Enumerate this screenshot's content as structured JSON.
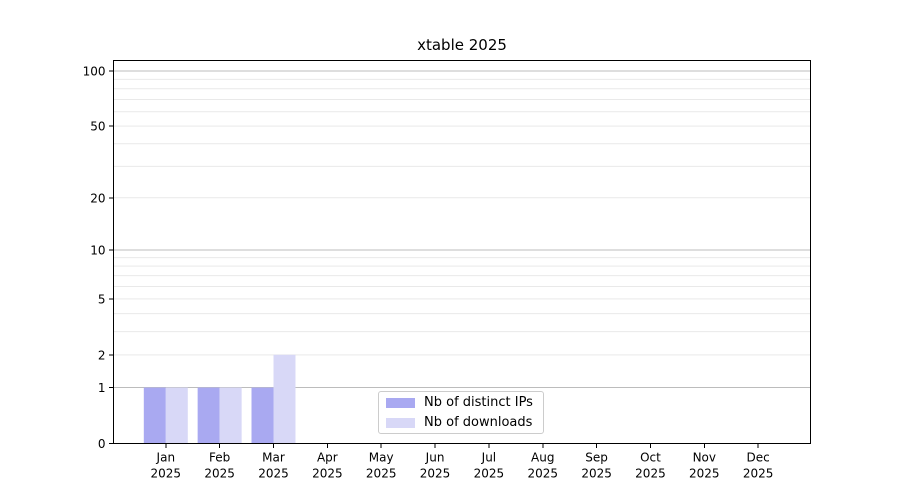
{
  "figure": {
    "title": "xtable 2025",
    "background": "#ffffff"
  },
  "chart_data": {
    "type": "bar",
    "title": "xtable 2025",
    "categories": [
      "Jan",
      "Feb",
      "Mar",
      "Apr",
      "May",
      "Jun",
      "Jul",
      "Aug",
      "Sep",
      "Oct",
      "Nov",
      "Dec"
    ],
    "category_year": "2025",
    "series": [
      {
        "name": "Nb of distinct IPs",
        "color": "#a9a9f1",
        "values": [
          1,
          1,
          1,
          0,
          0,
          0,
          0,
          0,
          0,
          0,
          0,
          0
        ]
      },
      {
        "name": "Nb of downloads",
        "color": "#d8d8f7",
        "values": [
          1,
          1,
          2,
          0,
          0,
          0,
          0,
          0,
          0,
          0,
          0,
          0
        ]
      }
    ],
    "yscale": "log10(1+y)",
    "yticks": [
      0,
      1,
      2,
      5,
      10,
      20,
      50,
      100
    ],
    "ylim": [
      0,
      115
    ],
    "grid": "on",
    "grid_major_values": [
      1,
      10,
      100
    ],
    "grid_minor_values": [
      2,
      3,
      4,
      5,
      6,
      7,
      8,
      9,
      20,
      30,
      40,
      50,
      60,
      70,
      80,
      90
    ],
    "legend_position": "lower center"
  },
  "colors": {
    "grid_major": "#bcbcbc",
    "grid_minor": "#e9e9e9",
    "axis": "#000000",
    "text": "#000000",
    "legend_border": "#cccccc",
    "legend_background": "#ffffff"
  }
}
